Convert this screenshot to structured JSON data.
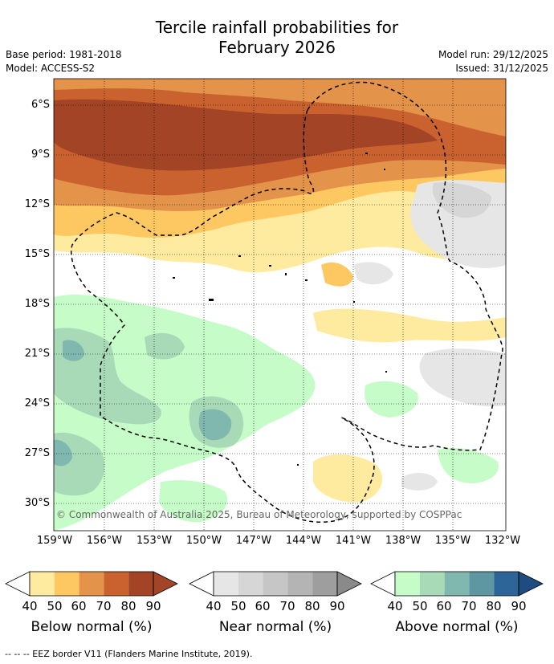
{
  "header": {
    "title_line1": "Tercile rainfall probabilities for",
    "title_line2": "February 2026",
    "base_period": "Base period: 1981-2018",
    "model": "Model: ACCESS-S2",
    "model_run": "Model run: 29/12/2025",
    "issued": "Issued: 31/12/2025"
  },
  "map": {
    "lat_labels": [
      "6°S",
      "9°S",
      "12°S",
      "15°S",
      "18°S",
      "21°S",
      "24°S",
      "27°S",
      "30°S"
    ],
    "lon_labels": [
      "159°W",
      "156°W",
      "153°W",
      "150°W",
      "147°W",
      "144°W",
      "141°W",
      "138°W",
      "135°W",
      "132°W"
    ],
    "copyright": "© Commonwealth of Australia 2025, Bureau of Meteorology, supported by COSPPac"
  },
  "colorbars": [
    {
      "title": "Below normal (%)",
      "ticks": [
        "40",
        "50",
        "60",
        "70",
        "80",
        "90"
      ],
      "colors": [
        "#ffeb9f",
        "#fdc862",
        "#e4934b",
        "#c9622f",
        "#a24425",
        "#a24425"
      ]
    },
    {
      "title": "Near normal (%)",
      "ticks": [
        "40",
        "50",
        "60",
        "70",
        "80",
        "90"
      ],
      "colors": [
        "#e6e6e6",
        "#d6d6d6",
        "#c6c6c6",
        "#b4b4b4",
        "#9e9e9e",
        "#8a8a8a"
      ]
    },
    {
      "title": "Above normal (%)",
      "ticks": [
        "40",
        "50",
        "60",
        "70",
        "80",
        "90"
      ],
      "colors": [
        "#c6fcc8",
        "#a8dab8",
        "#80b8b0",
        "#5e96a2",
        "#2e6598",
        "#1f4c80"
      ]
    }
  ],
  "footnote": "--  --  -- EEZ border V11 (Flanders Marine Institute, 2019)."
}
